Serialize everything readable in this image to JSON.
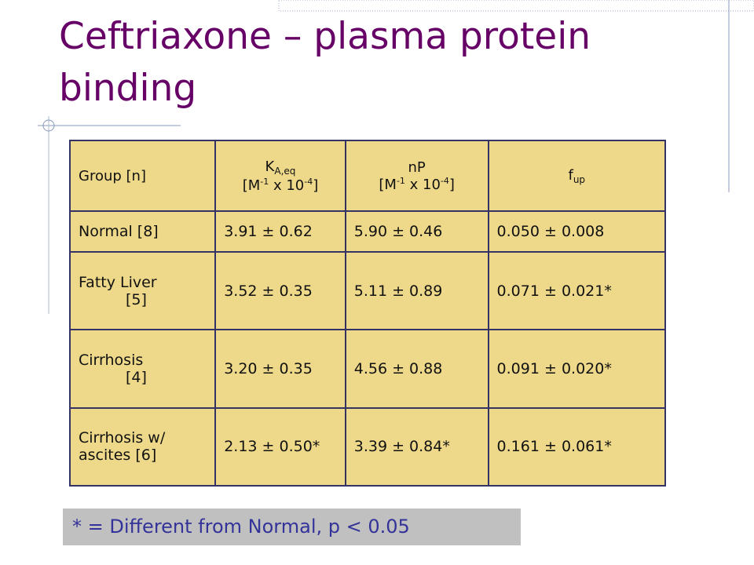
{
  "title": "Ceftriaxone – plasma protein binding",
  "table": {
    "header": [
      {
        "lines": [
          [
            {
              "text": "Group [n]"
            }
          ]
        ]
      },
      {
        "lines": [
          [
            {
              "text": "K"
            },
            {
              "text": "A,eq",
              "pos": "sub"
            }
          ],
          [
            {
              "text": "[M"
            },
            {
              "text": "-1",
              "pos": "sup"
            },
            {
              "text": " x 10"
            },
            {
              "text": "-4",
              "pos": "sup"
            },
            {
              "text": "]"
            }
          ]
        ]
      },
      {
        "lines": [
          [
            {
              "text": "nP"
            }
          ],
          [
            {
              "text": "[M"
            },
            {
              "text": "-1",
              "pos": "sup"
            },
            {
              "text": " x 10"
            },
            {
              "text": "-4",
              "pos": "sup"
            },
            {
              "text": "]"
            }
          ]
        ]
      },
      {
        "lines": [
          [
            {
              "text": "f"
            },
            {
              "text": "up",
              "pos": "sub"
            }
          ]
        ]
      }
    ],
    "rows": [
      [
        [
          "Normal [8]"
        ],
        "3.91 ± 0.62",
        "5.90 ± 0.46",
        "0.050 ± 0.008"
      ],
      [
        [
          "Fatty Liver",
          "[5]"
        ],
        "3.52 ± 0.35",
        "5.11 ± 0.89",
        "0.071 ± 0.021*"
      ],
      [
        [
          "Cirrhosis",
          "[4]"
        ],
        "3.20 ± 0.35",
        "4.56 ± 0.88",
        "0.091 ± 0.020*"
      ],
      [
        [
          "Cirrhosis w/",
          "ascites [6]"
        ],
        "2.13 ± 0.50*",
        "3.39 ± 0.84*",
        "0.161 ± 0.061*"
      ]
    ]
  },
  "footnote": "* = Different from Normal, p < 0.05"
}
